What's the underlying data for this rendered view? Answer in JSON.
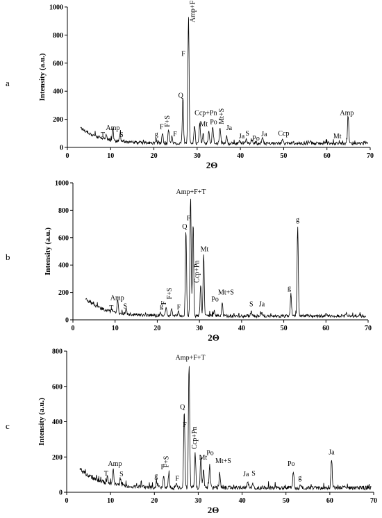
{
  "chart_data": [
    {
      "type": "line",
      "panel_label": "a",
      "xlabel": "2Θ",
      "ylabel": "Intensity (a.u.)",
      "xlim": [
        0,
        70
      ],
      "ylim": [
        0,
        1000
      ],
      "xticks": [
        0,
        10,
        20,
        30,
        40,
        50,
        60,
        70
      ],
      "yticks": [
        0,
        200,
        400,
        600,
        800,
        1000
      ],
      "background": {
        "start": 140,
        "min": 25,
        "decay": 4.5
      },
      "peaks": [
        {
          "x": 9.0,
          "y": 55
        },
        {
          "x": 10.5,
          "y": 110
        },
        {
          "x": 12.2,
          "y": 75
        },
        {
          "x": 20.5,
          "y": 55
        },
        {
          "x": 22.0,
          "y": 100
        },
        {
          "x": 23.4,
          "y": 125
        },
        {
          "x": 24.2,
          "y": 75
        },
        {
          "x": 26.7,
          "y": 335
        },
        {
          "x": 28.0,
          "y": 930
        },
        {
          "x": 29.4,
          "y": 155
        },
        {
          "x": 30.6,
          "y": 175
        },
        {
          "x": 31.4,
          "y": 100
        },
        {
          "x": 32.7,
          "y": 110
        },
        {
          "x": 33.6,
          "y": 150
        },
        {
          "x": 35.3,
          "y": 140
        },
        {
          "x": 36.8,
          "y": 75
        },
        {
          "x": 39.8,
          "y": 50
        },
        {
          "x": 41.3,
          "y": 55
        },
        {
          "x": 42.6,
          "y": 45
        },
        {
          "x": 43.5,
          "y": 35
        },
        {
          "x": 45.1,
          "y": 60
        },
        {
          "x": 49.7,
          "y": 55
        },
        {
          "x": 56.2,
          "y": 40
        },
        {
          "x": 64.9,
          "y": 215
        }
      ],
      "annotations": [
        {
          "text": "T",
          "x": 8.2,
          "y": 75
        },
        {
          "text": "Amp",
          "x": 10.5,
          "y": 125
        },
        {
          "text": "S",
          "x": 12.5,
          "y": 75
        },
        {
          "text": "g",
          "x": 20.6,
          "y": 78
        },
        {
          "text": "F",
          "x": 21.8,
          "y": 130
        },
        {
          "text": "F+S",
          "x": 23.6,
          "y": 145,
          "rotate": true
        },
        {
          "text": "F",
          "x": 24.9,
          "y": 80
        },
        {
          "text": "Q",
          "x": 26.2,
          "y": 355
        },
        {
          "text": "F",
          "x": 26.8,
          "y": 650
        },
        {
          "text": "Amp+F+T",
          "x": 29.5,
          "y": 890,
          "rotate": true
        },
        {
          "text": "Ccp+Pn",
          "x": 32.0,
          "y": 230
        },
        {
          "text": "Mt",
          "x": 31.5,
          "y": 150
        },
        {
          "text": "Po",
          "x": 33.8,
          "y": 165
        },
        {
          "text": "Mt+S",
          "x": 36.1,
          "y": 165,
          "rotate": true
        },
        {
          "text": "Ja",
          "x": 37.4,
          "y": 125
        },
        {
          "text": "Ja",
          "x": 40.3,
          "y": 65
        },
        {
          "text": "S",
          "x": 41.6,
          "y": 85
        },
        {
          "text": "Po",
          "x": 43.6,
          "y": 50
        },
        {
          "text": "Ja",
          "x": 45.5,
          "y": 80
        },
        {
          "text": "Ccp",
          "x": 50.0,
          "y": 85
        },
        {
          "text": "Mt",
          "x": 62.4,
          "y": 65
        },
        {
          "text": "Amp",
          "x": 64.6,
          "y": 230
        }
      ]
    },
    {
      "type": "line",
      "panel_label": "b",
      "xlabel": "2Θ",
      "ylabel": "Intensity (a.u.)",
      "xlim": [
        0,
        70
      ],
      "ylim": [
        0,
        1000
      ],
      "xticks": [
        0,
        10,
        20,
        30,
        40,
        50,
        60,
        70
      ],
      "yticks": [
        0,
        200,
        400,
        600,
        800,
        1000
      ],
      "background": {
        "start": 150,
        "min": 25,
        "decay": 4.5
      },
      "peaks": [
        {
          "x": 9.2,
          "y": 45
        },
        {
          "x": 10.6,
          "y": 120
        },
        {
          "x": 12.6,
          "y": 60
        },
        {
          "x": 20.8,
          "y": 50
        },
        {
          "x": 22.1,
          "y": 90
        },
        {
          "x": 23.4,
          "y": 80
        },
        {
          "x": 25.0,
          "y": 55
        },
        {
          "x": 26.8,
          "y": 655
        },
        {
          "x": 27.9,
          "y": 895
        },
        {
          "x": 28.5,
          "y": 700
        },
        {
          "x": 30.3,
          "y": 260
        },
        {
          "x": 31.0,
          "y": 480
        },
        {
          "x": 33.5,
          "y": 60
        },
        {
          "x": 35.4,
          "y": 120
        },
        {
          "x": 42.3,
          "y": 55
        },
        {
          "x": 44.8,
          "y": 60
        },
        {
          "x": 51.7,
          "y": 185
        },
        {
          "x": 53.3,
          "y": 680
        },
        {
          "x": 60.2,
          "y": 40
        },
        {
          "x": 64.8,
          "y": 40
        }
      ],
      "annotations": [
        {
          "text": "T",
          "x": 9.1,
          "y": 70
        },
        {
          "text": "Amp",
          "x": 10.5,
          "y": 145
        },
        {
          "text": "S",
          "x": 12.4,
          "y": 85
        },
        {
          "text": "g",
          "x": 21.0,
          "y": 85
        },
        {
          "text": "F",
          "x": 22.1,
          "y": 110,
          "rotate": true
        },
        {
          "text": "F+S",
          "x": 23.4,
          "y": 150,
          "rotate": true
        },
        {
          "text": "F",
          "x": 25.1,
          "y": 75
        },
        {
          "text": "Q",
          "x": 26.5,
          "y": 665
        },
        {
          "text": "F",
          "x": 27.4,
          "y": 725
        },
        {
          "text": "Amp+F+T",
          "x": 28.0,
          "y": 920
        },
        {
          "text": "Mt",
          "x": 31.2,
          "y": 500
        },
        {
          "text": "Ccp+Pn",
          "x": 29.9,
          "y": 270,
          "rotate": true
        },
        {
          "text": "Po",
          "x": 33.7,
          "y": 135
        },
        {
          "text": "Mt+S",
          "x": 36.3,
          "y": 185
        },
        {
          "text": "S",
          "x": 42.3,
          "y": 100
        },
        {
          "text": "Ja",
          "x": 44.8,
          "y": 100
        },
        {
          "text": "g",
          "x": 51.3,
          "y": 215
        },
        {
          "text": "g",
          "x": 53.3,
          "y": 715
        }
      ]
    },
    {
      "type": "line",
      "panel_label": "c",
      "xlabel": "2Θ",
      "ylabel": "Intensity (a.u.)",
      "xlim": [
        0,
        70
      ],
      "ylim": [
        0,
        800
      ],
      "xticks": [
        0,
        10,
        20,
        30,
        40,
        50,
        60,
        70
      ],
      "yticks": [
        0,
        200,
        400,
        600,
        800
      ],
      "background": {
        "start": 130,
        "min": 22,
        "decay": 4.5
      },
      "peaks": [
        {
          "x": 9.3,
          "y": 60
        },
        {
          "x": 10.6,
          "y": 115
        },
        {
          "x": 12.3,
          "y": 60
        },
        {
          "x": 20.5,
          "y": 50
        },
        {
          "x": 22.1,
          "y": 95
        },
        {
          "x": 23.3,
          "y": 100
        },
        {
          "x": 25.0,
          "y": 50
        },
        {
          "x": 26.8,
          "y": 460
        },
        {
          "x": 27.9,
          "y": 735
        },
        {
          "x": 29.3,
          "y": 215
        },
        {
          "x": 30.6,
          "y": 185
        },
        {
          "x": 31.2,
          "y": 120
        },
        {
          "x": 32.6,
          "y": 150
        },
        {
          "x": 34.9,
          "y": 105
        },
        {
          "x": 41.3,
          "y": 55
        },
        {
          "x": 42.4,
          "y": 45
        },
        {
          "x": 51.7,
          "y": 120
        },
        {
          "x": 53.3,
          "y": 45
        },
        {
          "x": 60.4,
          "y": 190
        }
      ],
      "annotations": [
        {
          "text": "T",
          "x": 9.0,
          "y": 95
        },
        {
          "text": "Amp",
          "x": 11.0,
          "y": 150
        },
        {
          "text": "S",
          "x": 12.5,
          "y": 90
        },
        {
          "text": "g",
          "x": 20.4,
          "y": 80
        },
        {
          "text": "F",
          "x": 21.9,
          "y": 130
        },
        {
          "text": "F+S",
          "x": 23.2,
          "y": 140,
          "rotate": true
        },
        {
          "text": "F",
          "x": 25.2,
          "y": 65
        },
        {
          "text": "Q",
          "x": 26.4,
          "y": 470
        },
        {
          "text": "F",
          "x": 26.9,
          "y": 370
        },
        {
          "text": "Amp+F+T",
          "x": 28.2,
          "y": 750
        },
        {
          "text": "Ccp+Pn",
          "x": 29.6,
          "y": 245,
          "rotate": true
        },
        {
          "text": "Mt",
          "x": 31.1,
          "y": 185
        },
        {
          "text": "Po",
          "x": 32.7,
          "y": 210
        },
        {
          "text": "Mt+S",
          "x": 35.7,
          "y": 165
        },
        {
          "text": "Ja",
          "x": 40.9,
          "y": 90
        },
        {
          "text": "S",
          "x": 42.6,
          "y": 95
        },
        {
          "text": "Po",
          "x": 51.2,
          "y": 150
        },
        {
          "text": "g",
          "x": 53.2,
          "y": 70
        },
        {
          "text": "Ja",
          "x": 60.4,
          "y": 215
        }
      ]
    }
  ]
}
